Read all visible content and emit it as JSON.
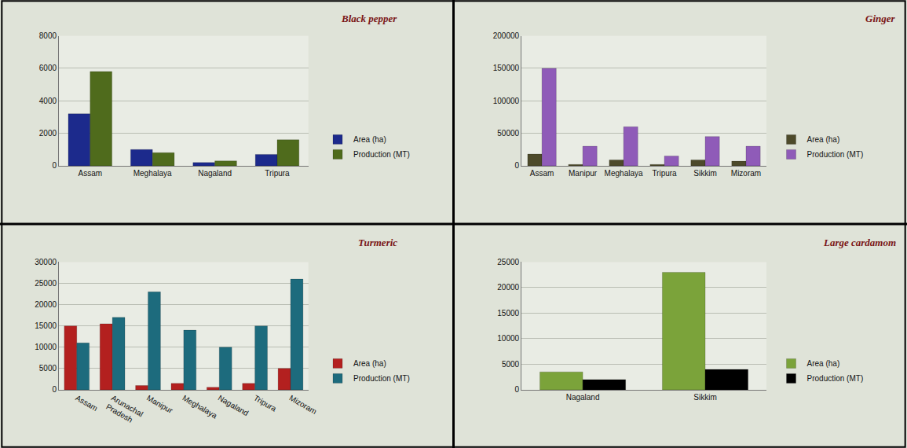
{
  "chart_data": [
    {
      "type": "bar",
      "title": "Black pepper",
      "categories": [
        "Assam",
        "Meghalaya",
        "Nagaland",
        "Tripura"
      ],
      "series": [
        {
          "name": "Area (ha)",
          "color": "#1c2a8c",
          "values": [
            3200,
            1000,
            200,
            700
          ]
        },
        {
          "name": "Production (MT)",
          "color": "#4f6b1c",
          "values": [
            5800,
            800,
            300,
            1600
          ]
        }
      ],
      "ylim": [
        0,
        8000
      ],
      "yticks": [
        0,
        2000,
        4000,
        6000,
        8000
      ],
      "grid": true,
      "legend": "bottom right"
    },
    {
      "type": "bar",
      "title": "Ginger",
      "categories": [
        "Assam",
        "Manipur",
        "Meghalaya",
        "Tripura",
        "Sikkim",
        "Mizoram"
      ],
      "series": [
        {
          "name": "Area (ha)",
          "color": "#4d4a2a",
          "values": [
            18000,
            2000,
            9000,
            2000,
            9000,
            7000
          ]
        },
        {
          "name": "Production (MT)",
          "color": "#8f5bb8",
          "values": [
            150000,
            30000,
            60000,
            15000,
            45000,
            30000
          ]
        }
      ],
      "ylim": [
        0,
        200000
      ],
      "yticks": [
        0,
        50000,
        100000,
        150000,
        200000
      ],
      "grid": true,
      "legend": "bottom right"
    },
    {
      "type": "bar",
      "title": "Turmeric",
      "categories": [
        "Assam",
        "Arunachal Pradesh",
        "Manipur",
        "Meghalaya",
        "Nagaland",
        "Tripura",
        "Mizoram"
      ],
      "series": [
        {
          "name": "Area (ha)",
          "color": "#b3201f",
          "values": [
            15000,
            15500,
            1000,
            1500,
            600,
            1500,
            5000
          ]
        },
        {
          "name": "Production (MT)",
          "color": "#1d6b7d",
          "values": [
            11000,
            17000,
            23000,
            14000,
            10000,
            15000,
            26000
          ]
        }
      ],
      "ylim": [
        0,
        30000
      ],
      "yticks": [
        0,
        5000,
        10000,
        15000,
        20000,
        25000,
        30000
      ],
      "grid": true,
      "legend": "bottom right"
    },
    {
      "type": "bar",
      "title": "Large cardamom",
      "categories": [
        "Nagaland",
        "Sikkim"
      ],
      "series": [
        {
          "name": "Area (ha)",
          "color": "#7ba33a",
          "values": [
            3500,
            23000
          ]
        },
        {
          "name": "Production (MT)",
          "color": "#000000",
          "values": [
            2000,
            4000
          ]
        }
      ],
      "ylim": [
        0,
        25000
      ],
      "yticks": [
        0,
        5000,
        10000,
        15000,
        20000,
        25000
      ],
      "grid": true,
      "legend": "bottom right"
    }
  ]
}
